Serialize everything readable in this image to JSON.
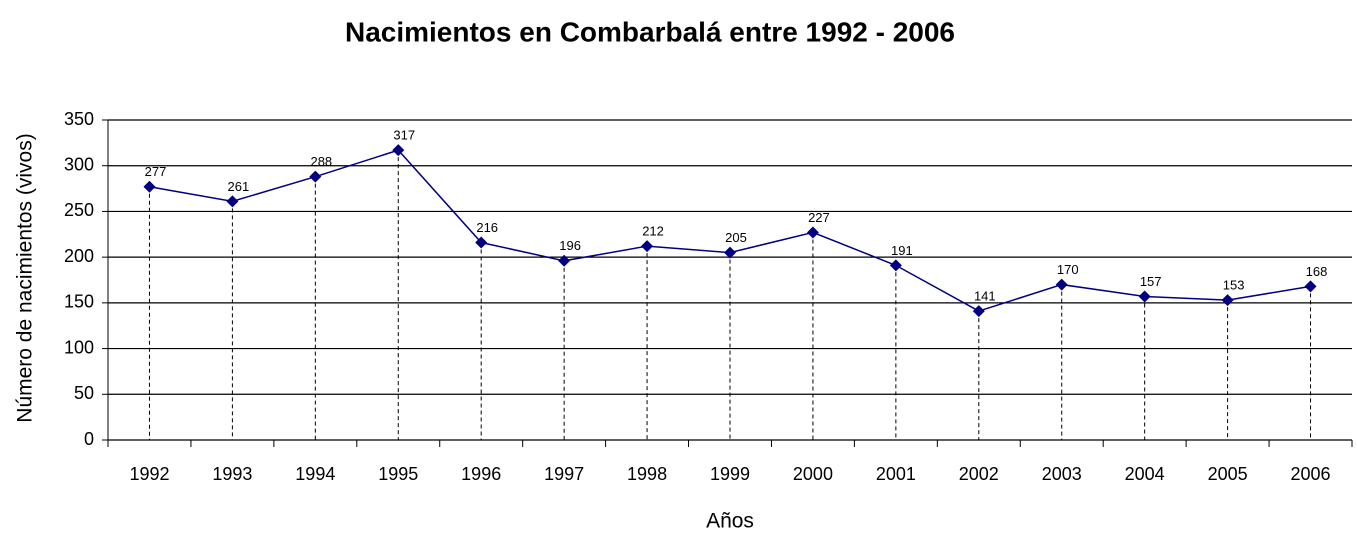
{
  "chart_data": {
    "type": "line",
    "title": "Nacimientos en Combarbalá entre 1992 - 2006",
    "x_label": "Años",
    "y_label": "Número de nacimientos (vivos)",
    "categories": [
      "1992",
      "1993",
      "1994",
      "1995",
      "1996",
      "1997",
      "1998",
      "1999",
      "2000",
      "2001",
      "2002",
      "2003",
      "2004",
      "2005",
      "2006"
    ],
    "series": [
      {
        "name": "Nacimientos",
        "color": "#000080",
        "values": [
          277,
          261,
          288,
          317,
          216,
          196,
          212,
          205,
          227,
          191,
          141,
          170,
          157,
          153,
          168
        ]
      }
    ],
    "ylim": [
      0,
      350
    ],
    "yticks": [
      0,
      50,
      100,
      150,
      200,
      250,
      300,
      350
    ],
    "grid": true
  }
}
